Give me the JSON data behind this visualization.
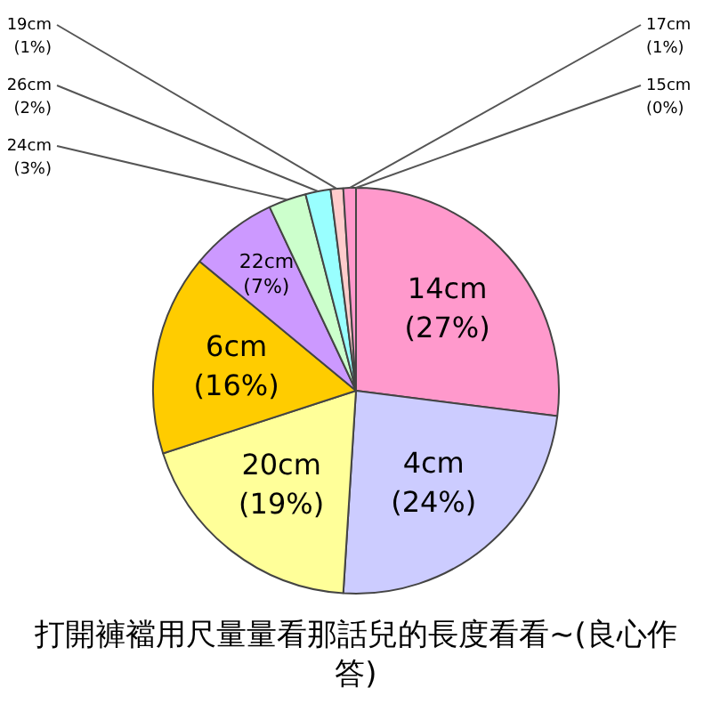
{
  "chart_data": {
    "type": "pie",
    "categories": [
      "14cm",
      "4cm",
      "20cm",
      "6cm",
      "22cm",
      "24cm",
      "26cm",
      "19cm",
      "17cm",
      "15cm"
    ],
    "values": [
      27,
      24,
      19,
      16,
      7,
      3,
      2,
      1,
      1,
      0
    ],
    "value_labels": [
      "(27%)",
      "(24%)",
      "(19%)",
      "(16%)",
      "(7%)",
      "(3%)",
      "(2%)",
      "(1%)",
      "(1%)",
      "(0%)"
    ],
    "colors": [
      "#ff99cc",
      "#ccccff",
      "#ffff99",
      "#ffcc00",
      "#cc99ff",
      "#ccffcc",
      "#99ffff",
      "#ffcccc",
      "#ff99cc",
      "#c0c0c0"
    ],
    "annotations": [
      "打開褲襠用尺量量看那話兒的長度看看~(良心作答)"
    ],
    "legend": false
  }
}
